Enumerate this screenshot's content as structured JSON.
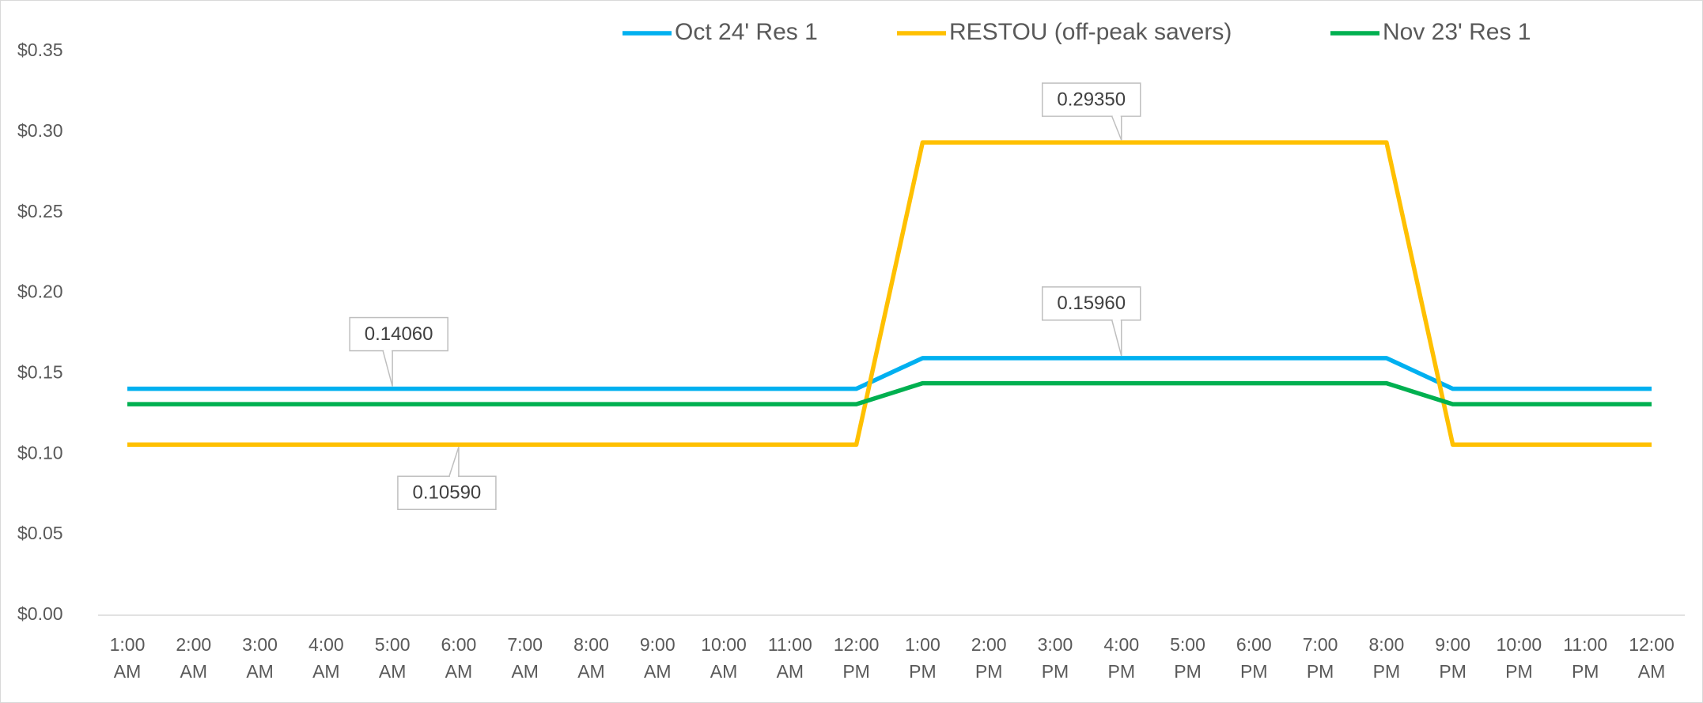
{
  "chart_data": {
    "type": "line",
    "categories": [
      "1:00 AM",
      "2:00 AM",
      "3:00 AM",
      "4:00 AM",
      "5:00 AM",
      "6:00 AM",
      "7:00 AM",
      "8:00 AM",
      "9:00 AM",
      "10:00 AM",
      "11:00 AM",
      "12:00 PM",
      "1:00 PM",
      "2:00 PM",
      "3:00 PM",
      "4:00 PM",
      "5:00 PM",
      "6:00 PM",
      "7:00 PM",
      "8:00 PM",
      "9:00 PM",
      "10:00 PM",
      "11:00 PM",
      "12:00 AM"
    ],
    "series": [
      {
        "name": "Oct 24' Res 1",
        "color": "#00b0f0",
        "values": [
          0.1406,
          0.1406,
          0.1406,
          0.1406,
          0.1406,
          0.1406,
          0.1406,
          0.1406,
          0.1406,
          0.1406,
          0.1406,
          0.1406,
          0.1596,
          0.1596,
          0.1596,
          0.1596,
          0.1596,
          0.1596,
          0.1596,
          0.1596,
          0.1406,
          0.1406,
          0.1406,
          0.1406
        ],
        "value_labels": [
          null,
          null,
          null,
          null,
          "0.14060",
          null,
          null,
          null,
          null,
          null,
          null,
          null,
          null,
          null,
          null,
          "0.15960",
          null,
          null,
          null,
          null,
          null,
          null,
          null,
          null
        ]
      },
      {
        "name": "RESTOU (off-peak savers)",
        "color": "#ffc000",
        "values": [
          0.1059,
          0.1059,
          0.1059,
          0.1059,
          0.1059,
          0.1059,
          0.1059,
          0.1059,
          0.1059,
          0.1059,
          0.1059,
          0.1059,
          0.2935,
          0.2935,
          0.2935,
          0.2935,
          0.2935,
          0.2935,
          0.2935,
          0.2935,
          0.1059,
          0.1059,
          0.1059,
          0.1059
        ],
        "value_labels": [
          null,
          null,
          null,
          null,
          null,
          "0.10590",
          null,
          null,
          null,
          null,
          null,
          null,
          null,
          null,
          null,
          "0.29350",
          null,
          null,
          null,
          null,
          null,
          null,
          null,
          null
        ]
      },
      {
        "name": "Nov 23' Res 1",
        "color": "#00b050",
        "values": [
          0.131,
          0.131,
          0.131,
          0.131,
          0.131,
          0.131,
          0.131,
          0.131,
          0.131,
          0.131,
          0.131,
          0.131,
          0.144,
          0.144,
          0.144,
          0.144,
          0.144,
          0.144,
          0.144,
          0.144,
          0.131,
          0.131,
          0.131,
          0.131
        ]
      }
    ],
    "ylim": [
      0,
      0.35
    ],
    "yticks": [
      {
        "value": 0,
        "label": "$0.00"
      },
      {
        "value": 0.05,
        "label": "$0.05"
      },
      {
        "value": 0.1,
        "label": "$0.10"
      },
      {
        "value": 0.15,
        "label": "$0.15"
      },
      {
        "value": 0.2,
        "label": "$0.20"
      },
      {
        "value": 0.25,
        "label": "$0.25"
      },
      {
        "value": 0.3,
        "label": "$0.30"
      },
      {
        "value": 0.35,
        "label": "$0.35"
      }
    ],
    "legend": "top"
  }
}
